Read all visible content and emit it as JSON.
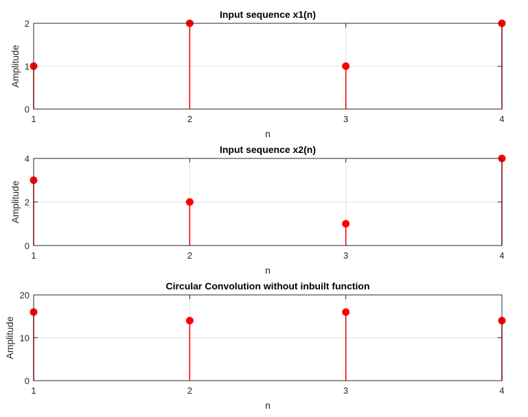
{
  "chart_data": [
    {
      "type": "stem",
      "title": "Input sequence x1(n)",
      "xlabel": "n",
      "ylabel": "Amplitude",
      "x": [
        1,
        2,
        3,
        4
      ],
      "values": [
        1,
        2,
        1,
        2
      ],
      "xlim": [
        1,
        4
      ],
      "ylim": [
        0,
        2
      ],
      "xticks": [
        1,
        2,
        3,
        4
      ],
      "yticks": [
        0,
        1,
        2
      ],
      "grid": true,
      "color": "#ff0000"
    },
    {
      "type": "stem",
      "title": "Input sequence x2(n)",
      "xlabel": "n",
      "ylabel": "Amplitude",
      "x": [
        1,
        2,
        3,
        4
      ],
      "values": [
        3,
        2,
        1,
        4
      ],
      "xlim": [
        1,
        4
      ],
      "ylim": [
        0,
        4
      ],
      "xticks": [
        1,
        2,
        3,
        4
      ],
      "yticks": [
        0,
        2,
        4
      ],
      "grid": true,
      "color": "#ff0000"
    },
    {
      "type": "stem",
      "title": "Circular Convolution without inbuilt function",
      "xlabel": "n",
      "ylabel": "Amplitude",
      "x": [
        1,
        2,
        3,
        4
      ],
      "values": [
        16,
        14,
        16,
        14
      ],
      "xlim": [
        1,
        4
      ],
      "ylim": [
        0,
        20
      ],
      "xticks": [
        1,
        2,
        3,
        4
      ],
      "yticks": [
        0,
        10,
        20
      ],
      "grid": true,
      "color": "#ff0000"
    }
  ]
}
